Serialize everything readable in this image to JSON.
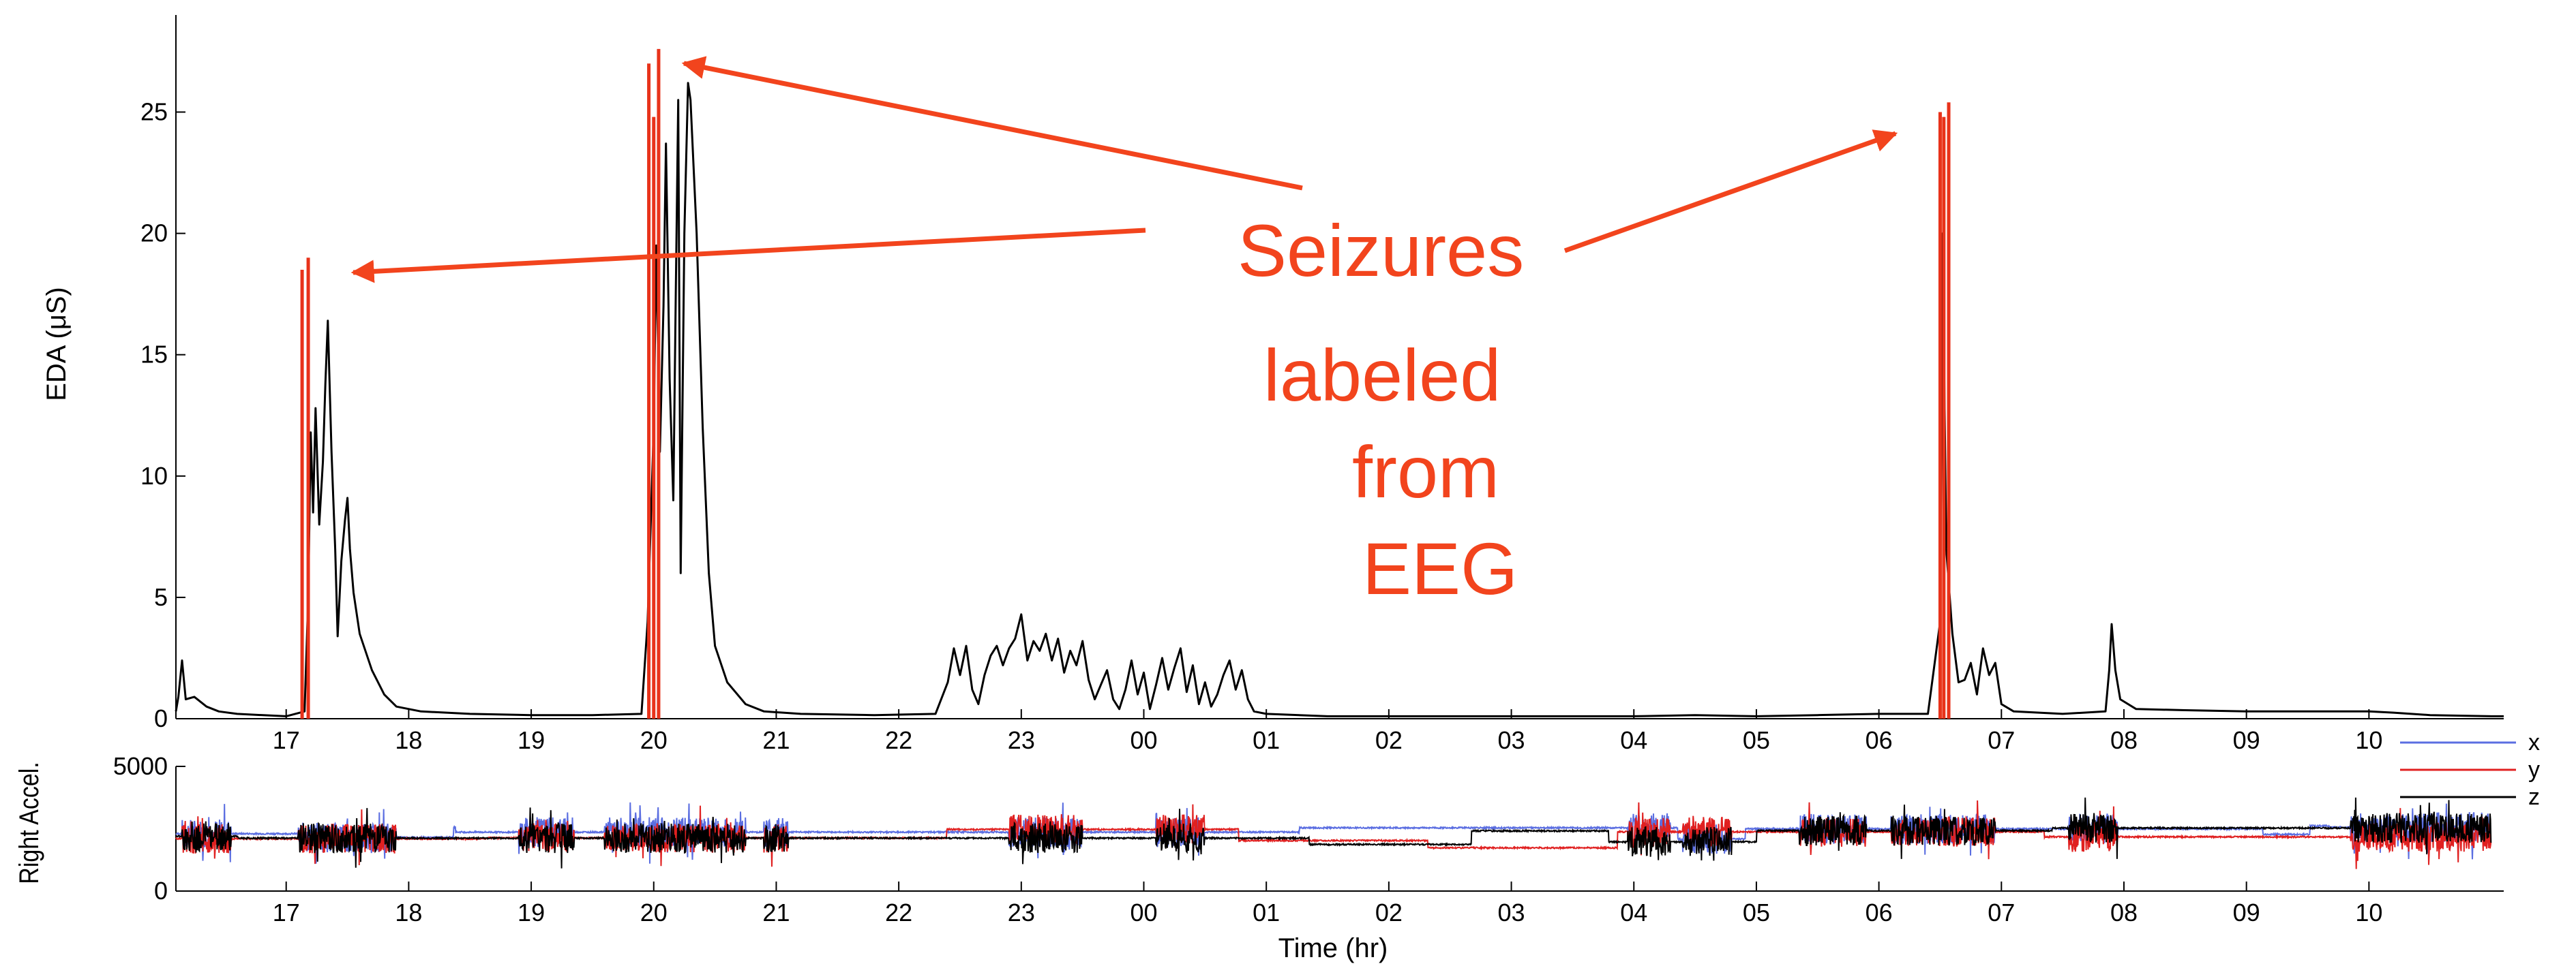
{
  "colors": {
    "eda_trace": "#000000",
    "seizure_marker": "#e8321a",
    "annotation": "#f2441d",
    "accel_x": "#5b6ee1",
    "accel_y": "#e02020",
    "accel_z": "#000000"
  },
  "annotation": {
    "lines": [
      "Seizures",
      "labeled",
      "from",
      "EEG"
    ]
  },
  "chart_data": [
    {
      "type": "line",
      "title": "",
      "ylabel": "EDA (μS)",
      "xlabel": "",
      "x_unit": "hours since 16:00 (tick labels show hour of day)",
      "xlim": [
        16.1,
        35.1
      ],
      "ylim": [
        0,
        29
      ],
      "yticks": [
        0,
        5,
        10,
        15,
        20,
        25
      ],
      "xticks": [
        {
          "x": 17,
          "label": "17"
        },
        {
          "x": 18,
          "label": "18"
        },
        {
          "x": 19,
          "label": "19"
        },
        {
          "x": 20,
          "label": "20"
        },
        {
          "x": 21,
          "label": "21"
        },
        {
          "x": 22,
          "label": "22"
        },
        {
          "x": 23,
          "label": "23"
        },
        {
          "x": 24,
          "label": "00"
        },
        {
          "x": 25,
          "label": "01"
        },
        {
          "x": 26,
          "label": "02"
        },
        {
          "x": 27,
          "label": "03"
        },
        {
          "x": 28,
          "label": "04"
        },
        {
          "x": 29,
          "label": "05"
        },
        {
          "x": 30,
          "label": "06"
        },
        {
          "x": 31,
          "label": "07"
        },
        {
          "x": 32,
          "label": "08"
        },
        {
          "x": 33,
          "label": "09"
        },
        {
          "x": 34,
          "label": "10"
        }
      ],
      "grid": false,
      "series": [
        {
          "name": "",
          "points": [
            [
              16.1,
              0.3
            ],
            [
              16.12,
              0.9
            ],
            [
              16.15,
              2.4
            ],
            [
              16.18,
              0.8
            ],
            [
              16.25,
              0.9
            ],
            [
              16.35,
              0.5
            ],
            [
              16.45,
              0.3
            ],
            [
              16.6,
              0.2
            ],
            [
              17.0,
              0.1
            ],
            [
              17.15,
              0.3
            ],
            [
              17.18,
              5
            ],
            [
              17.2,
              11.8
            ],
            [
              17.22,
              8.5
            ],
            [
              17.24,
              12.8
            ],
            [
              17.27,
              8.0
            ],
            [
              17.3,
              10.6
            ],
            [
              17.32,
              13.8
            ],
            [
              17.34,
              16.4
            ],
            [
              17.37,
              11
            ],
            [
              17.4,
              7
            ],
            [
              17.42,
              3.4
            ],
            [
              17.45,
              6.5
            ],
            [
              17.48,
              8.2
            ],
            [
              17.5,
              9.1
            ],
            [
              17.52,
              7
            ],
            [
              17.55,
              5.2
            ],
            [
              17.6,
              3.5
            ],
            [
              17.7,
              2.0
            ],
            [
              17.8,
              1.0
            ],
            [
              17.9,
              0.5
            ],
            [
              18.1,
              0.3
            ],
            [
              18.5,
              0.2
            ],
            [
              19.0,
              0.15
            ],
            [
              19.5,
              0.15
            ],
            [
              19.9,
              0.2
            ],
            [
              19.95,
              4
            ],
            [
              20.0,
              12
            ],
            [
              20.02,
              19.5
            ],
            [
              20.05,
              11
            ],
            [
              20.08,
              17
            ],
            [
              20.1,
              23.7
            ],
            [
              20.13,
              14
            ],
            [
              20.16,
              9
            ],
            [
              20.18,
              17.5
            ],
            [
              20.2,
              25.5
            ],
            [
              20.22,
              6.0
            ],
            [
              20.25,
              20
            ],
            [
              20.28,
              26.2
            ],
            [
              20.3,
              25.5
            ],
            [
              20.35,
              20
            ],
            [
              20.4,
              12
            ],
            [
              20.45,
              6
            ],
            [
              20.5,
              3
            ],
            [
              20.6,
              1.5
            ],
            [
              20.75,
              0.6
            ],
            [
              20.9,
              0.3
            ],
            [
              21.2,
              0.2
            ],
            [
              21.8,
              0.15
            ],
            [
              22.3,
              0.2
            ],
            [
              22.4,
              1.5
            ],
            [
              22.45,
              2.9
            ],
            [
              22.5,
              1.8
            ],
            [
              22.55,
              3.0
            ],
            [
              22.6,
              1.2
            ],
            [
              22.65,
              0.6
            ],
            [
              22.7,
              1.8
            ],
            [
              22.75,
              2.6
            ],
            [
              22.8,
              3.0
            ],
            [
              22.85,
              2.2
            ],
            [
              22.9,
              2.9
            ],
            [
              22.95,
              3.3
            ],
            [
              23.0,
              4.3
            ],
            [
              23.05,
              2.4
            ],
            [
              23.1,
              3.2
            ],
            [
              23.15,
              2.8
            ],
            [
              23.2,
              3.5
            ],
            [
              23.25,
              2.4
            ],
            [
              23.3,
              3.3
            ],
            [
              23.35,
              1.9
            ],
            [
              23.4,
              2.8
            ],
            [
              23.45,
              2.2
            ],
            [
              23.5,
              3.2
            ],
            [
              23.55,
              1.6
            ],
            [
              23.6,
              0.8
            ],
            [
              23.65,
              1.4
            ],
            [
              23.7,
              2.0
            ],
            [
              23.75,
              0.8
            ],
            [
              23.8,
              0.4
            ],
            [
              23.85,
              1.2
            ],
            [
              23.9,
              2.4
            ],
            [
              23.95,
              1.0
            ],
            [
              24.0,
              1.9
            ],
            [
              24.05,
              0.4
            ],
            [
              24.1,
              1.4
            ],
            [
              24.15,
              2.5
            ],
            [
              24.2,
              1.2
            ],
            [
              24.25,
              2.1
            ],
            [
              24.3,
              2.9
            ],
            [
              24.35,
              1.1
            ],
            [
              24.4,
              2.2
            ],
            [
              24.45,
              0.6
            ],
            [
              24.5,
              1.5
            ],
            [
              24.55,
              0.5
            ],
            [
              24.6,
              1.0
            ],
            [
              24.65,
              1.8
            ],
            [
              24.7,
              2.4
            ],
            [
              24.75,
              1.2
            ],
            [
              24.8,
              2.0
            ],
            [
              24.85,
              0.8
            ],
            [
              24.9,
              0.3
            ],
            [
              25.0,
              0.2
            ],
            [
              25.5,
              0.1
            ],
            [
              26.0,
              0.1
            ],
            [
              27.0,
              0.1
            ],
            [
              28.0,
              0.1
            ],
            [
              28.5,
              0.15
            ],
            [
              29.0,
              0.1
            ],
            [
              29.5,
              0.15
            ],
            [
              30.0,
              0.2
            ],
            [
              30.4,
              0.2
            ],
            [
              30.5,
              4
            ],
            [
              30.52,
              20
            ],
            [
              30.55,
              7
            ],
            [
              30.6,
              3.5
            ],
            [
              30.65,
              1.5
            ],
            [
              30.7,
              1.6
            ],
            [
              30.75,
              2.3
            ],
            [
              30.8,
              1.0
            ],
            [
              30.85,
              2.9
            ],
            [
              30.9,
              1.8
            ],
            [
              30.95,
              2.3
            ],
            [
              31.0,
              0.6
            ],
            [
              31.1,
              0.3
            ],
            [
              31.5,
              0.2
            ],
            [
              31.85,
              0.3
            ],
            [
              31.88,
              2.0
            ],
            [
              31.9,
              3.9
            ],
            [
              31.93,
              2.0
            ],
            [
              31.97,
              0.8
            ],
            [
              32.1,
              0.4
            ],
            [
              32.5,
              0.35
            ],
            [
              33.0,
              0.3
            ],
            [
              33.5,
              0.3
            ],
            [
              34.0,
              0.3
            ],
            [
              34.2,
              0.25
            ],
            [
              34.5,
              0.15
            ],
            [
              35.0,
              0.1
            ],
            [
              35.1,
              0.1
            ]
          ]
        }
      ],
      "markers": [
        {
          "x": 17.13,
          "y": 18.5
        },
        {
          "x": 17.18,
          "y": 19.0
        },
        {
          "x": 19.96,
          "y": 27.0
        },
        {
          "x": 20.0,
          "y": 24.8
        },
        {
          "x": 20.04,
          "y": 27.6
        },
        {
          "x": 30.5,
          "y": 25.0
        },
        {
          "x": 30.53,
          "y": 24.8
        },
        {
          "x": 30.57,
          "y": 25.4
        }
      ]
    },
    {
      "type": "line",
      "title": "",
      "ylabel": "Right Accel.",
      "xlabel": "Time (hr)",
      "xlim": [
        16.1,
        35.1
      ],
      "ylim": [
        0,
        5000
      ],
      "yticks": [
        0,
        5000
      ],
      "xticks": [
        {
          "x": 17,
          "label": "17"
        },
        {
          "x": 18,
          "label": "18"
        },
        {
          "x": 19,
          "label": "19"
        },
        {
          "x": 20,
          "label": "20"
        },
        {
          "x": 21,
          "label": "21"
        },
        {
          "x": 22,
          "label": "22"
        },
        {
          "x": 23,
          "label": "23"
        },
        {
          "x": 24,
          "label": "00"
        },
        {
          "x": 25,
          "label": "01"
        },
        {
          "x": 26,
          "label": "02"
        },
        {
          "x": 27,
          "label": "03"
        },
        {
          "x": 28,
          "label": "04"
        },
        {
          "x": 29,
          "label": "05"
        },
        {
          "x": 30,
          "label": "06"
        },
        {
          "x": 31,
          "label": "07"
        },
        {
          "x": 32,
          "label": "08"
        },
        {
          "x": 33,
          "label": "09"
        },
        {
          "x": 34,
          "label": "10"
        }
      ],
      "legend": "right",
      "grid": false,
      "activity_bursts": [
        [
          16.15,
          16.55
        ],
        [
          17.1,
          17.9
        ],
        [
          18.9,
          19.35
        ],
        [
          19.6,
          20.75
        ],
        [
          20.9,
          21.1
        ],
        [
          22.9,
          23.5
        ],
        [
          24.1,
          24.5
        ],
        [
          27.95,
          28.3
        ],
        [
          28.4,
          28.8
        ],
        [
          29.35,
          29.9
        ],
        [
          30.1,
          30.95
        ],
        [
          31.55,
          31.95
        ],
        [
          33.85,
          35.0
        ]
      ],
      "series": [
        {
          "name": "x",
          "baseline": 2300
        },
        {
          "name": "y",
          "baseline": 2100
        },
        {
          "name": "z",
          "baseline": 2200
        }
      ]
    }
  ]
}
